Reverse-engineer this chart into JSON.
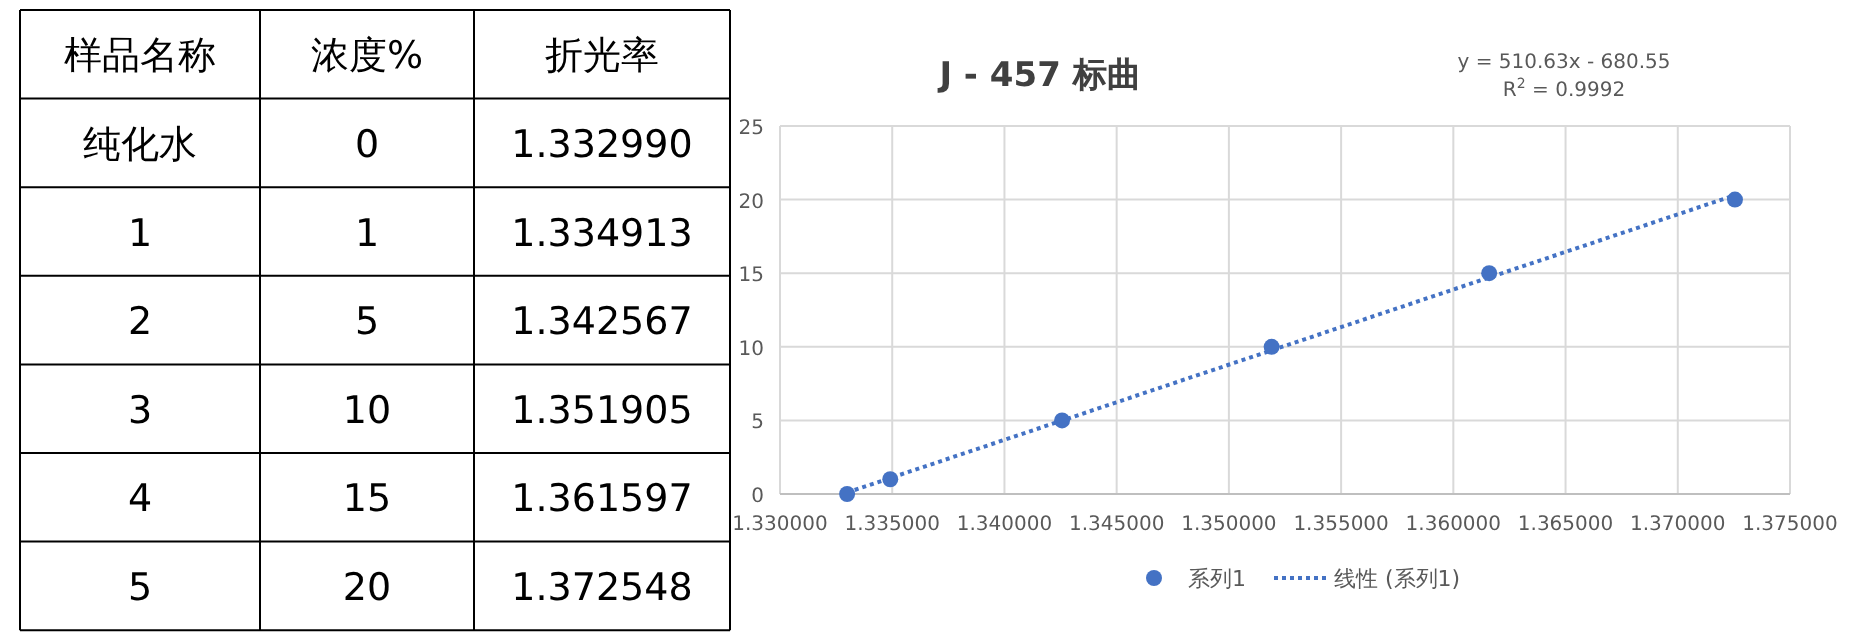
{
  "chart_data": {
    "type": "scatter",
    "title": "J - 457 标曲",
    "annotations": [
      "样品名称",
      "浓度%",
      "折光率",
      "纯化水",
      "0",
      "1.332990",
      "1",
      "1",
      "1.334913",
      "2",
      "5",
      "1.342567",
      "3",
      "10",
      "1.351905",
      "4",
      "15",
      "1.361597",
      "5",
      "20",
      "1.372548",
      "y = 510.63x - 680.55",
      "R$^{2}$ = 0.9992"
    ],
    "series": [
      {
        "name": "系列1",
        "color": "#4472c4",
        "marker": "circle",
        "x": [
          1.33299,
          1.334913,
          1.342567,
          1.351905,
          1.361597,
          1.372548
        ],
        "values": [
          0,
          1,
          5,
          10,
          15,
          20
        ]
      },
      {
        "name": "线性 (系列1)",
        "type": "line",
        "color": "#4472c4",
        "line_style": "dotted",
        "x": [
          1.33299,
          1.372548
        ],
        "values": [
          0.1,
          20.3
        ]
      }
    ],
    "xlim": [
      1.33,
      1.375
    ],
    "xticks": [
      {
        "value": 1.33,
        "label": "1.330000"
      },
      {
        "value": 1.335,
        "label": "1.335000"
      },
      {
        "value": 1.34,
        "label": "1.340000"
      },
      {
        "value": 1.345,
        "label": "1.345000"
      },
      {
        "value": 1.35,
        "label": "1.350000"
      },
      {
        "value": 1.355,
        "label": "1.355000"
      },
      {
        "value": 1.36,
        "label": "1.360000"
      },
      {
        "value": 1.365,
        "label": "1.365000"
      },
      {
        "value": 1.37,
        "label": "1.370000"
      },
      {
        "value": 1.375,
        "label": "1.375000"
      }
    ],
    "ylim": [
      0,
      25
    ],
    "yticks": [
      0,
      5,
      10,
      15,
      20,
      25
    ],
    "grid": true,
    "legend": "bottom"
  }
}
